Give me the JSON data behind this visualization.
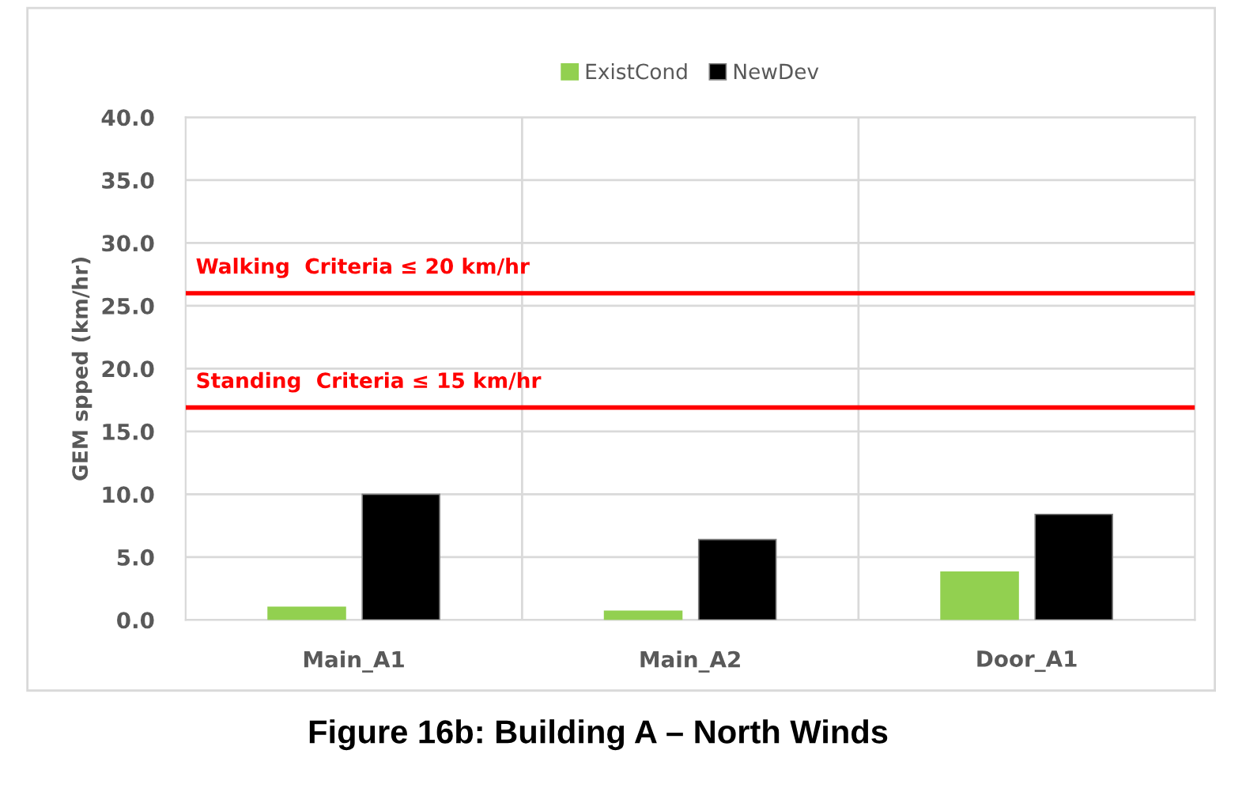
{
  "chart_data": {
    "type": "bar",
    "title": "Figure 16b: Building A – North Winds",
    "ylabel": "GEM spped (km/hr)",
    "categories": [
      "Main_A1",
      "Main_A2",
      "Door_A1"
    ],
    "series": [
      {
        "name": "ExistCond",
        "color": "#92d050",
        "values": [
          1.0,
          0.7,
          3.8
        ]
      },
      {
        "name": "NewDev",
        "color": "#000000",
        "values": [
          10.0,
          6.4,
          8.4
        ]
      }
    ],
    "ylim": [
      0,
      40
    ],
    "yticks": [
      {
        "value": 0,
        "label": "0.0"
      },
      {
        "value": 5,
        "label": "5.0"
      },
      {
        "value": 10,
        "label": "10.0"
      },
      {
        "value": 15,
        "label": "15.0"
      },
      {
        "value": 20,
        "label": "20.0"
      },
      {
        "value": 25,
        "label": "25.0"
      },
      {
        "value": 30,
        "label": "30.0"
      },
      {
        "value": 35,
        "label": "35.0"
      },
      {
        "value": 40,
        "label": "40.0"
      }
    ],
    "ref_lines": [
      {
        "axis": "y",
        "value": 26.0,
        "label": "Walking  Criteria ≤ 20 km/hr",
        "color": "#ff0000"
      },
      {
        "axis": "y",
        "value": 16.9,
        "label": "Standing  Criteria ≤ 15 km/hr",
        "color": "#ff0000"
      }
    ],
    "grid": true,
    "legend": "top"
  }
}
